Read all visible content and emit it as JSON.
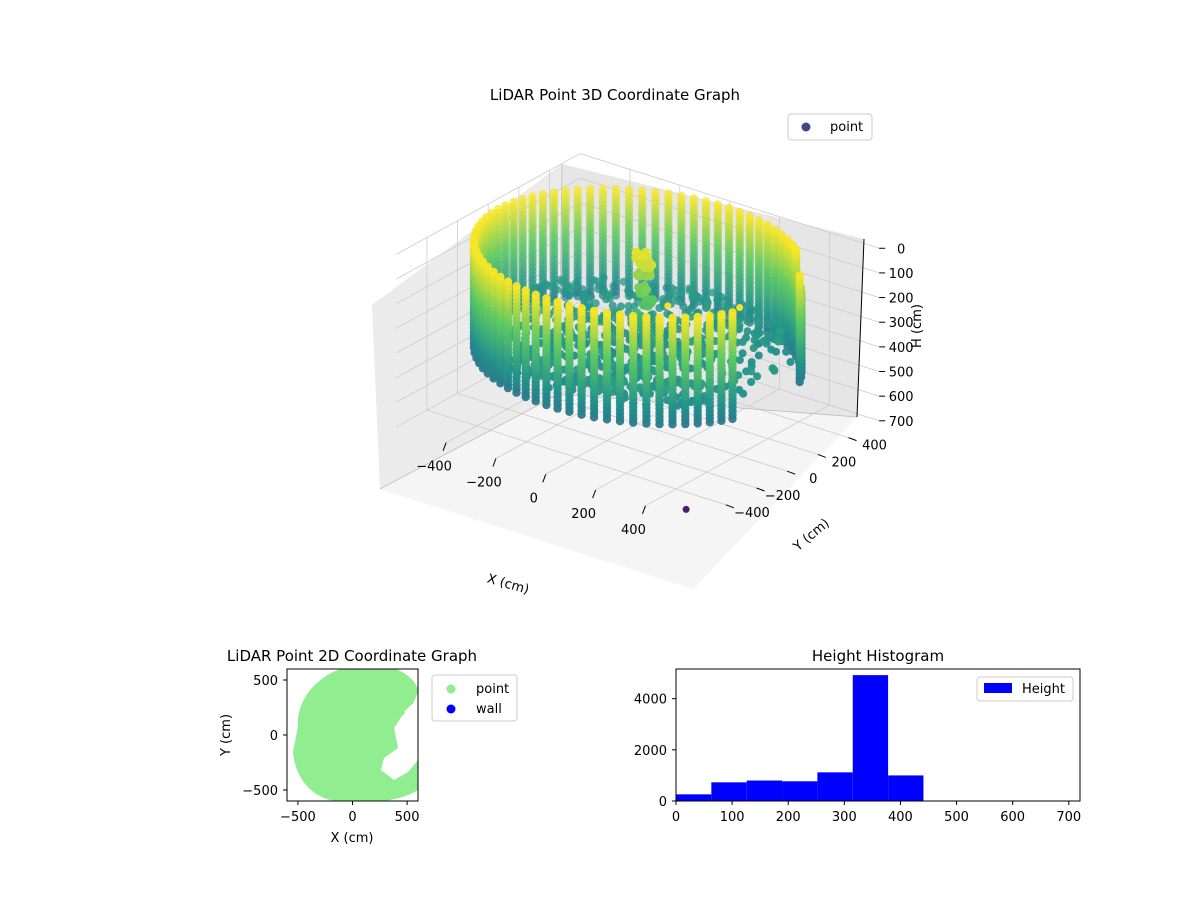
{
  "chart_data": [
    {
      "type": "scatter",
      "projection": "3d",
      "title": "LiDAR Point 3D Coordinate Graph",
      "xlabel": "X (cm)",
      "ylabel": "Y (cm)",
      "zlabel": "H (cm)",
      "xlim": [
        -600,
        600
      ],
      "ylim": [
        -600,
        600
      ],
      "zlim": [
        700,
        0
      ],
      "x_ticks": [
        "−400",
        "−200",
        "0",
        "200",
        "400"
      ],
      "y_ticks": [
        "−400",
        "−200",
        "0",
        "200",
        "400"
      ],
      "z_ticks": [
        "0",
        "100",
        "200",
        "300",
        "400",
        "500",
        "600",
        "700"
      ],
      "legend": {
        "position": "upper-right",
        "entries": [
          {
            "label": "point",
            "color": "#3e4989"
          }
        ]
      },
      "colormap": "viridis",
      "series": [
        {
          "name": "point",
          "description_shape": "cylindrical wall of radius ~560 cm spanning height 0–440 cm, open on the +x side, plus an inner cluster",
          "wall_radius": 560,
          "wall_height_range": [
            0,
            440
          ],
          "inner_cluster_points": [
            {
              "x": -20,
              "y": 50,
              "h": 40
            },
            {
              "x": 0,
              "y": 40,
              "h": 40
            },
            {
              "x": 20,
              "y": 30,
              "h": 60
            },
            {
              "x": -10,
              "y": 60,
              "h": 120
            },
            {
              "x": 10,
              "y": 20,
              "h": 160
            },
            {
              "x": 30,
              "y": 10,
              "h": 200
            },
            {
              "x": 0,
              "y": 0,
              "h": 260
            },
            {
              "x": 40,
              "y": -20,
              "h": 300
            },
            {
              "x": 60,
              "y": -40,
              "h": 340
            },
            {
              "x": 90,
              "y": -60,
              "h": 380
            }
          ],
          "outliers": [
            {
              "x": 330,
              "y": -340,
              "h": 0
            },
            {
              "x": 520,
              "y": -180,
              "h": 0
            },
            {
              "x": 520,
              "y": -530,
              "h": 700
            }
          ]
        }
      ]
    },
    {
      "type": "scatter",
      "title": "LiDAR Point 2D Coordinate Graph",
      "xlabel": "X (cm)",
      "ylabel": "Y (cm)",
      "xlim": [
        -600,
        600
      ],
      "ylim": [
        -600,
        600
      ],
      "x_ticks": [
        "−500",
        "0",
        "500"
      ],
      "y_ticks": [
        "−500",
        "0",
        "500"
      ],
      "legend": {
        "position": "outside-right",
        "entries": [
          {
            "label": "point",
            "color": "#90ee90"
          },
          {
            "label": "wall",
            "color": "#0000ff"
          }
        ]
      }
    },
    {
      "type": "bar",
      "title": "Height Histogram",
      "xlim": [
        0,
        720
      ],
      "ylim": [
        0,
        5160
      ],
      "x_ticks": [
        "0",
        "100",
        "200",
        "300",
        "400",
        "500",
        "600",
        "700"
      ],
      "y_ticks": [
        "0",
        "2000",
        "4000"
      ],
      "bin_edges": [
        0,
        63,
        126,
        189,
        252,
        315,
        378,
        441,
        504,
        567,
        630,
        693
      ],
      "series": [
        {
          "name": "Height",
          "color": "#0000ff",
          "values": [
            260,
            730,
            800,
            770,
            1120,
            4920,
            1000,
            0,
            0,
            0,
            0
          ]
        }
      ],
      "legend": {
        "position": "upper-right",
        "entries": [
          {
            "label": "Height",
            "color": "#0000ff"
          }
        ]
      }
    }
  ]
}
